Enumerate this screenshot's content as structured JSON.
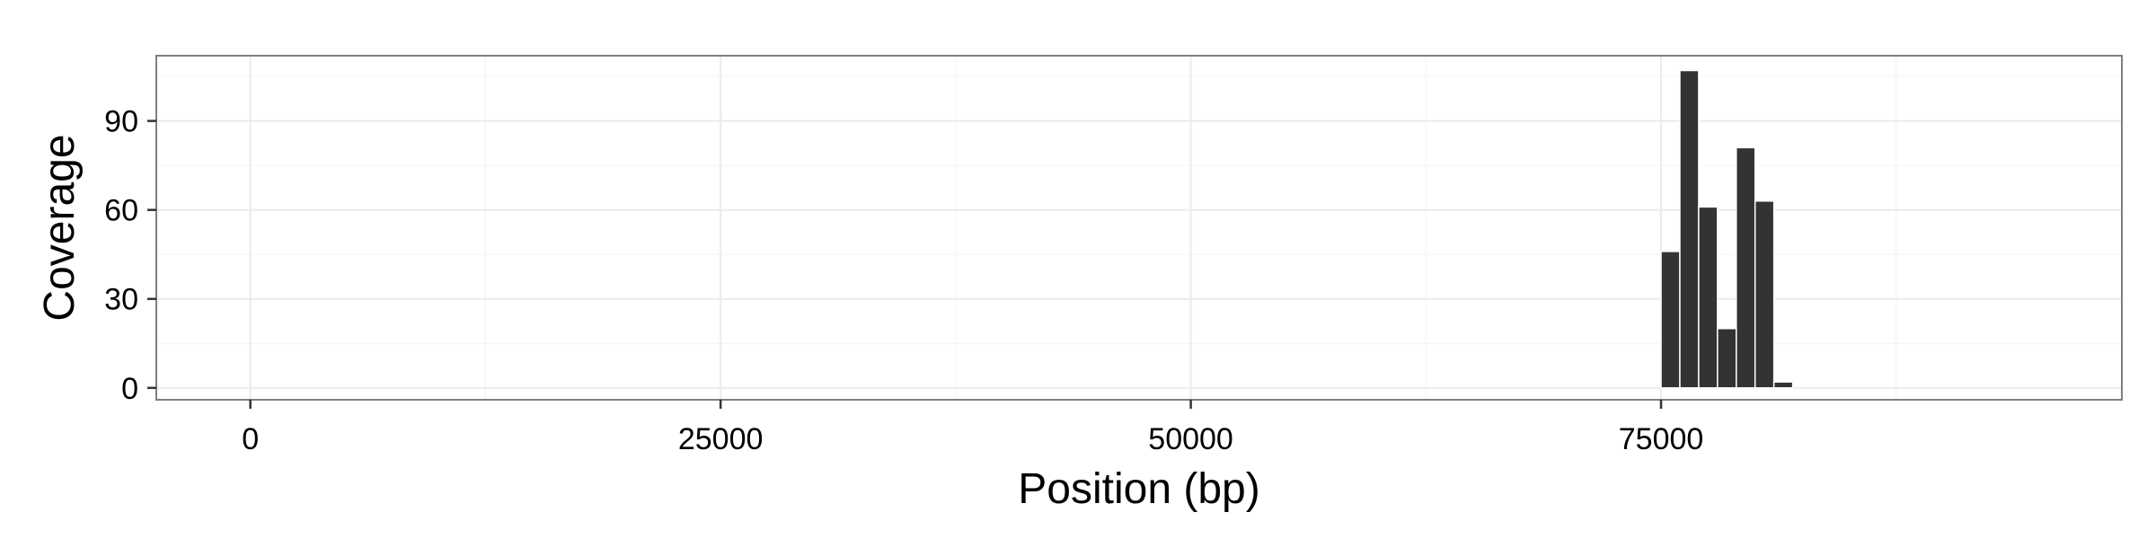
{
  "chart_data": {
    "type": "bar",
    "title": "",
    "xlabel": "Position (bp)",
    "ylabel": "Coverage",
    "xlim": [
      -5000,
      99500
    ],
    "ylim": [
      -4,
      112
    ],
    "xticks": [
      0,
      25000,
      50000,
      75000
    ],
    "xtick_labels": [
      "0",
      "25000",
      "50000",
      "75000"
    ],
    "yticks": [
      0,
      30,
      60,
      90
    ],
    "ytick_labels": [
      "0",
      "30",
      "60",
      "90"
    ],
    "bin_width": 1000,
    "x": [
      75500,
      76500,
      77500,
      78500,
      79500,
      80500,
      81500
    ],
    "values": [
      46,
      107,
      61,
      20,
      81,
      63,
      2
    ],
    "grid": true,
    "legend": "none",
    "colors": {
      "bar": "#333333",
      "background": "#ffffff",
      "grid_major": "#ebebeb",
      "grid_minor": "#f5f5f5",
      "border": "#7f7f7f"
    }
  }
}
